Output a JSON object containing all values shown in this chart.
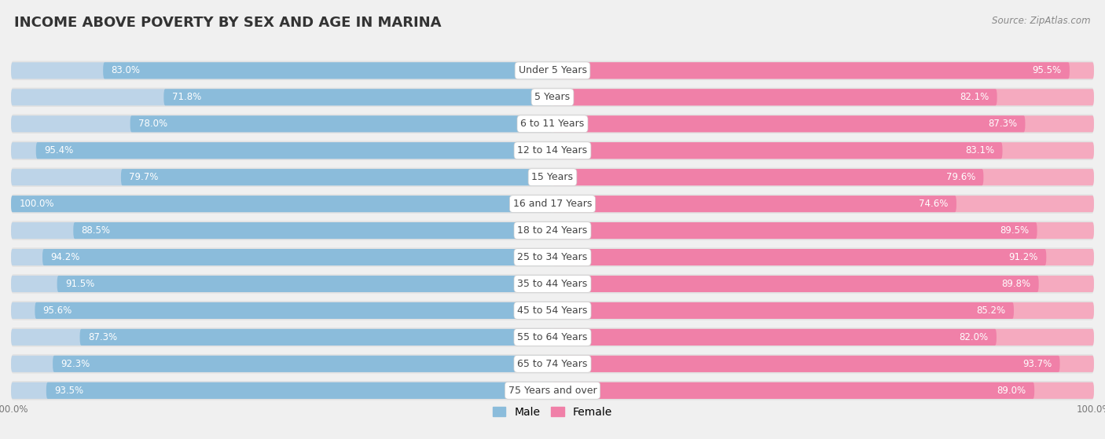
{
  "title": "INCOME ABOVE POVERTY BY SEX AND AGE IN MARINA",
  "source": "Source: ZipAtlas.com",
  "categories": [
    "Under 5 Years",
    "5 Years",
    "6 to 11 Years",
    "12 to 14 Years",
    "15 Years",
    "16 and 17 Years",
    "18 to 24 Years",
    "25 to 34 Years",
    "35 to 44 Years",
    "45 to 54 Years",
    "55 to 64 Years",
    "65 to 74 Years",
    "75 Years and over"
  ],
  "male_values": [
    83.0,
    71.8,
    78.0,
    95.4,
    79.7,
    100.0,
    88.5,
    94.2,
    91.5,
    95.6,
    87.3,
    92.3,
    93.5
  ],
  "female_values": [
    95.5,
    82.1,
    87.3,
    83.1,
    79.6,
    74.6,
    89.5,
    91.2,
    89.8,
    85.2,
    82.0,
    93.7,
    89.0
  ],
  "male_color": "#8BBCDB",
  "female_color": "#F080A8",
  "male_color_light": "#BDD4E8",
  "female_color_light": "#F5AABF",
  "male_label": "Male",
  "female_label": "Female",
  "bg_color": "#f0f0f0",
  "row_bg_color": "#e2e2e2",
  "label_bg_color": "#ffffff",
  "title_fontsize": 13,
  "label_fontsize": 8.5,
  "value_fontsize": 8.5,
  "cat_fontsize": 9,
  "legend_fontsize": 10,
  "source_fontsize": 8.5
}
